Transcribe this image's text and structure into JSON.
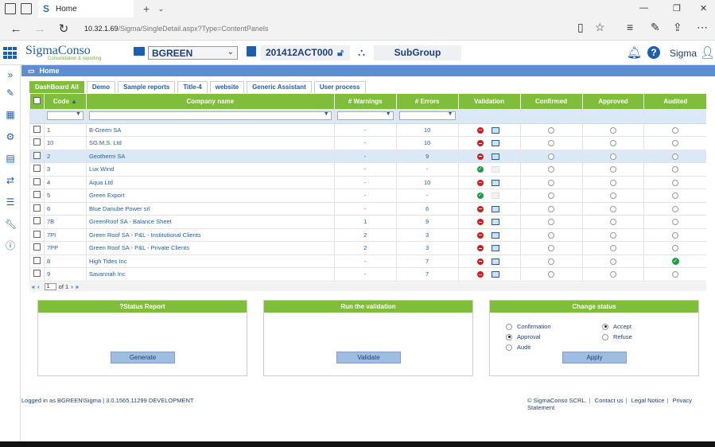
{
  "browser": {
    "tab_title": "Home",
    "tab_logo": "S",
    "url_host": "10.32.1.69",
    "url_path": "/Sigma/SingleDetail.aspx?Type=ContentPanels"
  },
  "header": {
    "logo_text": "SigmaConso",
    "logo_tagline": "Consolidation & reporting",
    "entity": "BGREEN",
    "period": "201412ACT000",
    "subgroup": "SubGroup",
    "user": "Sigma"
  },
  "page": {
    "title": "Home"
  },
  "tabs": [
    "DashBoard All",
    "Demo",
    "Sample reports",
    "Title-4",
    "website",
    "Generic Assistant",
    "User process"
  ],
  "grid": {
    "columns": [
      "Code",
      "Company name",
      "# Warnings",
      "# Errors",
      "Validation",
      "Confirmed",
      "Approved",
      "Audited"
    ],
    "rows": [
      {
        "code": "1",
        "name": "B-Green SA",
        "warnings": "-",
        "errors": "10",
        "validation": "error",
        "audited": false
      },
      {
        "code": "10",
        "name": "SG.M.S. Ltd",
        "warnings": "-",
        "errors": "10",
        "validation": "error",
        "audited": false
      },
      {
        "code": "2",
        "name": "Geotherm SA",
        "warnings": "-",
        "errors": "9",
        "validation": "error",
        "audited": false
      },
      {
        "code": "3",
        "name": "Lux Wind",
        "warnings": "-",
        "errors": "-",
        "validation": "ok",
        "audited": false
      },
      {
        "code": "4",
        "name": "Aqua Ltd",
        "warnings": "-",
        "errors": "10",
        "validation": "error",
        "audited": false
      },
      {
        "code": "5",
        "name": "Green Export",
        "warnings": "-",
        "errors": "-",
        "validation": "ok",
        "audited": false
      },
      {
        "code": "6",
        "name": "Blue Danube Power srl",
        "warnings": "-",
        "errors": "6",
        "validation": "error",
        "audited": false
      },
      {
        "code": "7B",
        "name": "GreenRoof SA - Balance Sheet",
        "warnings": "1",
        "errors": "9",
        "validation": "error",
        "audited": false
      },
      {
        "code": "7PI",
        "name": "Green Roof SA - P&L - Institutional Clients",
        "warnings": "2",
        "errors": "3",
        "validation": "error",
        "audited": false
      },
      {
        "code": "7PP",
        "name": "Green Roof SA - P&L - Private Clients",
        "warnings": "2",
        "errors": "3",
        "validation": "error",
        "audited": false
      },
      {
        "code": "8",
        "name": "High Tides Inc",
        "warnings": "-",
        "errors": "7",
        "validation": "error",
        "audited": true
      },
      {
        "code": "9",
        "name": "Savannah Inc",
        "warnings": "-",
        "errors": "7",
        "validation": "error",
        "audited": false
      }
    ]
  },
  "pager": {
    "page": "1",
    "of_label": "of 1"
  },
  "panels": {
    "status_report": {
      "title": "?Status Report",
      "button": "Generate"
    },
    "validation": {
      "title": "Run the validation",
      "button": "Validate"
    },
    "change_status": {
      "title": "Change status",
      "options_left": [
        "Confirmation",
        "Approval",
        "Audit"
      ],
      "options_right": [
        "Accept",
        "Refuse"
      ],
      "selected_left": "Approval",
      "selected_right": "Accept",
      "button": "Apply"
    }
  },
  "footer": {
    "login": "Logged in as BGREEN\\Sigma | 3.0.1565.11299 DEVELOPMENT",
    "copyright": "© SigmaConso SCRL.",
    "links": [
      "Contact us",
      "Legal Notice",
      "Privacy Statement"
    ]
  },
  "colors": {
    "accent_green": "#7fbe3b",
    "brand_blue": "#1d5fae",
    "error_red": "#d51b1b",
    "ok_green": "#1b9e3e"
  }
}
